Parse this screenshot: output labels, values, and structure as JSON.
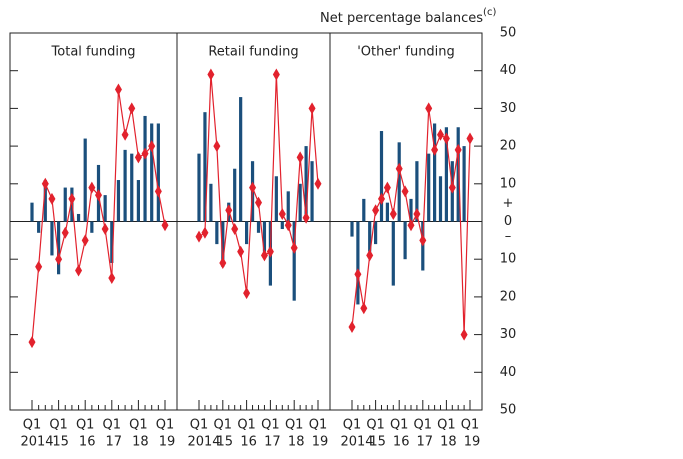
{
  "chart_data": [
    {
      "type": "combo",
      "title": "Total funding",
      "categories": [
        "Q1",
        null,
        null,
        null,
        "Q1",
        null,
        null,
        null,
        "Q1",
        null,
        null,
        null,
        "Q1",
        null,
        null,
        null,
        "Q1",
        null,
        null,
        null,
        "Q1"
      ],
      "years": [
        "2014",
        "15",
        "16",
        "17",
        "18",
        "19"
      ],
      "ylim": [
        -50,
        50
      ],
      "yticks": [
        -50,
        -40,
        -30,
        -20,
        -10,
        0,
        10,
        20,
        30,
        40,
        50
      ],
      "series": [
        {
          "type": "bar",
          "color": "#1b4f7c",
          "values": [
            5,
            -3,
            11,
            -9,
            -14,
            9,
            9,
            2,
            22,
            -3,
            15,
            7,
            -11,
            11,
            19,
            18,
            11,
            28,
            26,
            26,
            0
          ]
        },
        {
          "type": "line",
          "color": "#e2222d",
          "values": [
            -32,
            -12,
            10,
            6,
            -10,
            -3,
            6,
            -13,
            -5,
            9,
            7,
            -2,
            -15,
            35,
            23,
            30,
            17,
            18,
            20,
            8,
            -1
          ]
        }
      ]
    },
    {
      "type": "combo",
      "title": "Retail funding",
      "categories": [
        "Q1",
        null,
        null,
        null,
        "Q1",
        null,
        null,
        null,
        "Q1",
        null,
        null,
        null,
        "Q1",
        null,
        null,
        null,
        "Q1",
        null,
        null,
        null,
        "Q1"
      ],
      "years": [
        "2014",
        "15",
        "16",
        "17",
        "18",
        "19"
      ],
      "ylim": [
        -50,
        50
      ],
      "series": [
        {
          "type": "bar",
          "color": "#1b4f7c",
          "values": [
            18,
            29,
            10,
            -6,
            -12,
            5,
            14,
            33,
            -6,
            16,
            -3,
            -8,
            -17,
            12,
            -2,
            8,
            -21,
            10,
            20,
            16,
            0
          ]
        },
        {
          "type": "line",
          "color": "#e2222d",
          "values": [
            -4,
            -3,
            39,
            20,
            -11,
            3,
            -2,
            -8,
            -19,
            9,
            5,
            -9,
            -8,
            39,
            2,
            -1,
            -7,
            17,
            1,
            30,
            10
          ]
        }
      ]
    },
    {
      "type": "combo",
      "title": "'Other' funding",
      "categories": [
        "Q1",
        null,
        null,
        null,
        "Q1",
        null,
        null,
        null,
        "Q1",
        null,
        null,
        null,
        "Q1",
        null,
        null,
        null,
        "Q1",
        null,
        null,
        null,
        "Q1"
      ],
      "years": [
        "2014",
        "15",
        "16",
        "17",
        "18",
        "19"
      ],
      "ylabel": "Net percentage balances",
      "ylabel_note": "(c)",
      "sign_labels": [
        "+",
        "–"
      ],
      "ylim": [
        -50,
        50
      ],
      "yticks": [
        {
          "value": -50,
          "label": "50"
        },
        {
          "value": -40,
          "label": "40"
        },
        {
          "value": -30,
          "label": "30"
        },
        {
          "value": -20,
          "label": "20"
        },
        {
          "value": -10,
          "label": "10"
        },
        0,
        10,
        20,
        30,
        40,
        50
      ],
      "series": [
        {
          "type": "bar",
          "color": "#1b4f7c",
          "values": [
            -4,
            -22,
            6,
            -8,
            -6,
            24,
            5,
            -17,
            21,
            -10,
            6,
            16,
            -13,
            18,
            26,
            12,
            25,
            16,
            25,
            20,
            0
          ]
        },
        {
          "type": "line",
          "color": "#e2222d",
          "values": [
            -28,
            -14,
            -23,
            -9,
            3,
            6,
            9,
            2,
            14,
            8,
            -1,
            2,
            -5,
            30,
            19,
            23,
            22,
            9,
            19,
            -30,
            22
          ]
        }
      ]
    }
  ]
}
